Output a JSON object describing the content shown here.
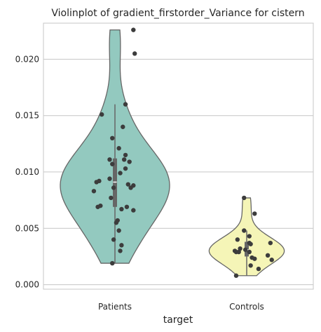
{
  "chart_data": {
    "type": "violin",
    "title": "Violinplot of gradient_firstorder_Variance for cistern",
    "xlabel": "target",
    "ylabel": "",
    "ylim": [
      -0.0004,
      0.0232
    ],
    "yticks": [
      "0.000",
      "0.005",
      "0.010",
      "0.015",
      "0.020"
    ],
    "ytick_values": [
      0.0,
      0.005,
      0.01,
      0.015,
      0.02
    ],
    "grid": "horizontal",
    "categories": [
      "Patients",
      "Controls"
    ],
    "series": [
      {
        "category": "Patients",
        "color": "#93c9bf",
        "cut_range": [
          0.0019,
          0.0226
        ],
        "box": {
          "q1": 0.0069,
          "median": 0.0091,
          "q3": 0.0112,
          "whisker_low": 0.0019,
          "whisker_high": 0.016
        },
        "points": [
          {
            "x": 0.14,
            "y": 0.0226
          },
          {
            "x": 0.15,
            "y": 0.0205
          },
          {
            "x": 0.08,
            "y": 0.016
          },
          {
            "x": -0.1,
            "y": 0.0151
          },
          {
            "x": 0.06,
            "y": 0.014
          },
          {
            "x": -0.02,
            "y": 0.013
          },
          {
            "x": 0.03,
            "y": 0.0121
          },
          {
            "x": 0.08,
            "y": 0.0115
          },
          {
            "x": -0.04,
            "y": 0.0111
          },
          {
            "x": 0.07,
            "y": 0.0111
          },
          {
            "x": 0.11,
            "y": 0.0109
          },
          {
            "x": -0.02,
            "y": 0.0107
          },
          {
            "x": 0.08,
            "y": 0.0103
          },
          {
            "x": 0.04,
            "y": 0.0099
          },
          {
            "x": -0.04,
            "y": 0.0094
          },
          {
            "x": -0.12,
            "y": 0.0092
          },
          {
            "x": -0.14,
            "y": 0.0091
          },
          {
            "x": 0.1,
            "y": 0.0089
          },
          {
            "x": 0.14,
            "y": 0.0088
          },
          {
            "x": -0.01,
            "y": 0.0086
          },
          {
            "x": 0.12,
            "y": 0.0086
          },
          {
            "x": -0.16,
            "y": 0.0083
          },
          {
            "x": -0.03,
            "y": 0.0077
          },
          {
            "x": -0.11,
            "y": 0.007
          },
          {
            "x": -0.13,
            "y": 0.0069
          },
          {
            "x": 0.09,
            "y": 0.0069
          },
          {
            "x": 0.05,
            "y": 0.0067
          },
          {
            "x": 0.14,
            "y": 0.0066
          },
          {
            "x": 0.02,
            "y": 0.0057
          },
          {
            "x": 0.01,
            "y": 0.0055
          },
          {
            "x": 0.03,
            "y": 0.0048
          },
          {
            "x": -0.01,
            "y": 0.004
          },
          {
            "x": 0.05,
            "y": 0.0035
          },
          {
            "x": 0.04,
            "y": 0.003
          },
          {
            "x": -0.02,
            "y": 0.0019
          }
        ]
      },
      {
        "category": "Controls",
        "color": "#f5f5b7",
        "cut_range": [
          0.0008,
          0.0077
        ],
        "box": {
          "q1": 0.0025,
          "median": 0.0031,
          "q3": 0.0038,
          "whisker_low": 0.0008,
          "whisker_high": 0.0048
        },
        "points": [
          {
            "x": -0.02,
            "y": 0.0077
          },
          {
            "x": 0.06,
            "y": 0.0063
          },
          {
            "x": -0.02,
            "y": 0.0048
          },
          {
            "x": 0.02,
            "y": 0.0043
          },
          {
            "x": -0.07,
            "y": 0.004
          },
          {
            "x": 0.02,
            "y": 0.0037
          },
          {
            "x": 0.18,
            "y": 0.0037
          },
          {
            "x": 0.03,
            "y": 0.0036
          },
          {
            "x": -0.05,
            "y": 0.0032
          },
          {
            "x": -0.01,
            "y": 0.0031
          },
          {
            "x": -0.09,
            "y": 0.003
          },
          {
            "x": -0.06,
            "y": 0.0029
          },
          {
            "x": 0.02,
            "y": 0.0029
          },
          {
            "x": -0.08,
            "y": 0.0029
          },
          {
            "x": 0.16,
            "y": 0.0026
          },
          {
            "x": 0.04,
            "y": 0.0024
          },
          {
            "x": 0.06,
            "y": 0.0023
          },
          {
            "x": 0.19,
            "y": 0.0022
          },
          {
            "x": 0.03,
            "y": 0.0017
          },
          {
            "x": 0.09,
            "y": 0.0014
          },
          {
            "x": -0.08,
            "y": 0.0008
          }
        ]
      }
    ]
  }
}
